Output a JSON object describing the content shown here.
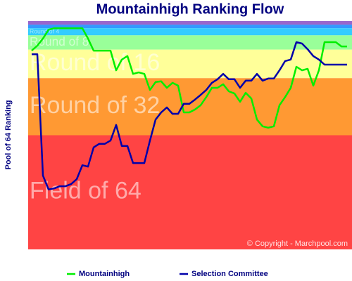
{
  "chart_data": {
    "type": "line",
    "title": "Mountainhigh Ranking Flow",
    "y_label": "Pool of 64 Ranking",
    "annotation": "© Copyright - Marchpool.com",
    "ylim": [
      0.5,
      64.5
    ],
    "y_inverted": true,
    "bands": [
      {
        "from": 0.5,
        "to": 1.5,
        "color": "#9966cc"
      },
      {
        "from": 1.5,
        "to": 2.5,
        "color": "#3399ff"
      },
      {
        "label": "Round of 4",
        "from": 2.5,
        "to": 4.5,
        "color": "#33ccff"
      },
      {
        "label": "Round of 8",
        "from": 4.5,
        "to": 8.5,
        "color": "#99ff99"
      },
      {
        "label": "Round of 16",
        "from": 8.5,
        "to": 16.5,
        "color": "#ffff99"
      },
      {
        "label": "Round of 32",
        "from": 16.5,
        "to": 32.5,
        "color": "#ff9933"
      },
      {
        "label": "Field of 64",
        "from": 32.5,
        "to": 64.5,
        "color": "#ff4444"
      }
    ],
    "series": [
      {
        "name": "Mountainhigh",
        "color": "#00ee00",
        "values": [
          8.8,
          7.4,
          5.4,
          2.9,
          2.5,
          2.5,
          2.5,
          2.5,
          2.5,
          2.5,
          5.4,
          8.8,
          8.8,
          8.8,
          8.8,
          14.3,
          11.3,
          10.3,
          15.3,
          14.9,
          15.3,
          19.8,
          17.6,
          17.4,
          19.2,
          17.8,
          18.6,
          26.1,
          26.1,
          25.3,
          24.1,
          21.8,
          19.2,
          19.2,
          18.2,
          20.2,
          20.8,
          23.1,
          20.6,
          22.2,
          28.1,
          30.0,
          30.4,
          30.0,
          24.1,
          21.8,
          19.2,
          13.3,
          14.3,
          13.9,
          18.6,
          14.3,
          6.4,
          6.4,
          6.4,
          7.6,
          7.6
        ]
      },
      {
        "name": "Selection Committee",
        "color": "#0000aa",
        "values": [
          9.8,
          9.8,
          43.8,
          47.7,
          47.4,
          46.8,
          46.8,
          46.2,
          44.8,
          40.9,
          41.3,
          35.9,
          34.9,
          34.9,
          34.0,
          29.6,
          35.5,
          35.5,
          40.3,
          40.3,
          40.3,
          34.0,
          28.1,
          26.1,
          24.7,
          26.5,
          26.5,
          23.7,
          23.7,
          22.5,
          21.2,
          19.8,
          17.8,
          16.8,
          15.3,
          16.8,
          16.8,
          19.2,
          17.2,
          17.2,
          15.3,
          17.2,
          16.6,
          16.6,
          14.3,
          11.7,
          11.3,
          6.4,
          6.8,
          8.4,
          10.3,
          11.3,
          12.7,
          12.7,
          12.7,
          12.7,
          12.7
        ]
      }
    ]
  }
}
